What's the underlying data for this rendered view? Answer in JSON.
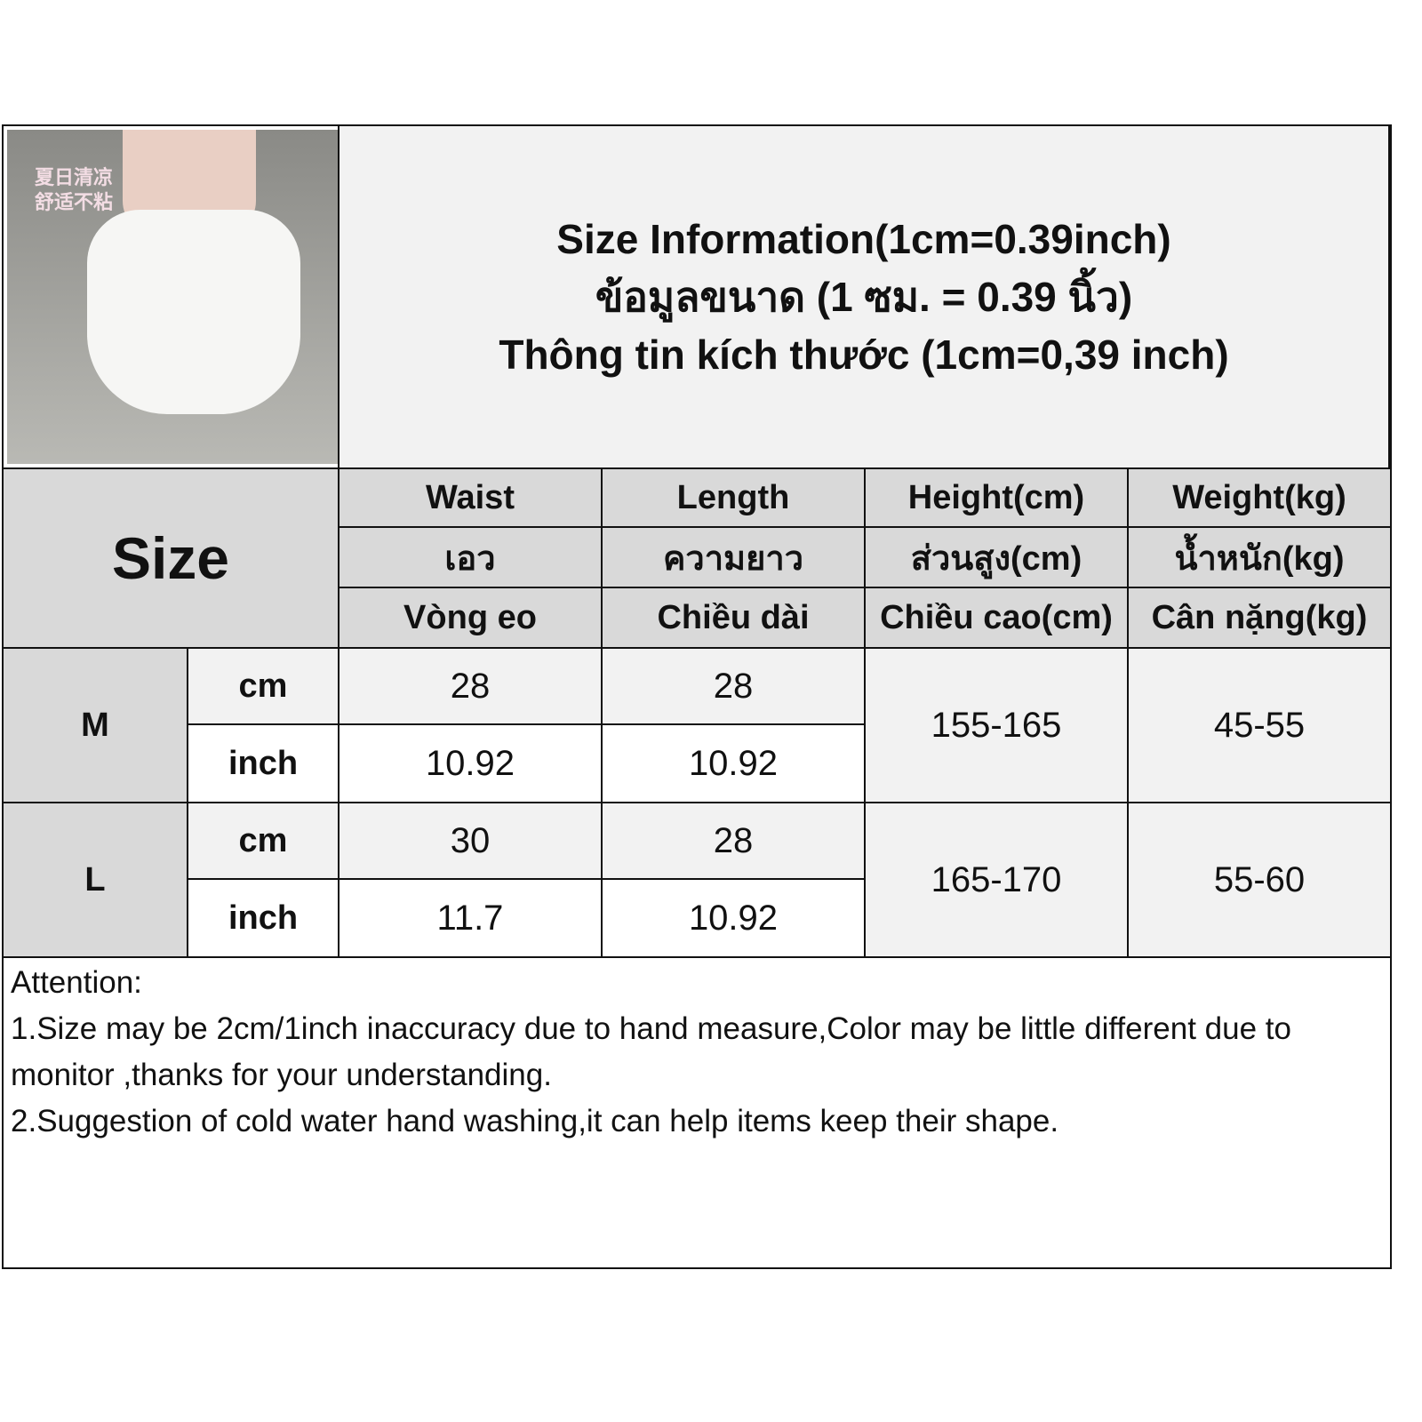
{
  "title_lines": [
    "Size Information(1cm=0.39inch)",
    "ข้อมูลขนาด (1 ซม. = 0.39 นิ้ว)",
    "Thông tin kích thước (1cm=0,39 inch)"
  ],
  "photo_overlay_text": "夏日清凉 舒适不粘",
  "size_label": "Size",
  "columns": [
    {
      "en": "Waist",
      "th": "เอว",
      "vi": "Vòng eo"
    },
    {
      "en": "Length",
      "th": "ความยาว",
      "vi": "Chiều dài"
    },
    {
      "en": "Height(cm)",
      "th": "ส่วนสูง(cm)",
      "vi": "Chiều cao(cm)"
    },
    {
      "en": "Weight(kg)",
      "th": "น้ำหนัก(kg)",
      "vi": "Cân nặng(kg)"
    }
  ],
  "rows": [
    {
      "size": "M",
      "cm_label": "cm",
      "inch_label": "inch",
      "waist_cm": "28",
      "waist_inch": "10.92",
      "length_cm": "28",
      "length_inch": "10.92",
      "height": "155-165",
      "weight": "45-55"
    },
    {
      "size": "L",
      "cm_label": "cm",
      "inch_label": "inch",
      "waist_cm": "30",
      "waist_inch": "11.7",
      "length_cm": "28",
      "length_inch": "10.92",
      "height": "165-170",
      "weight": "55-60"
    }
  ],
  "attention": {
    "heading": "Attention:",
    "line1": "1.Size may be 2cm/1inch inaccuracy due to hand measure,Color may be little different due to monitor ,thanks for your understanding.",
    "line2": "2.Suggestion of cold water hand washing,it can help items keep their shape."
  },
  "colors": {
    "header_gray": "#d9d9d9",
    "cm_row": "#f2f2f2",
    "inch_row": "#ffffff",
    "border": "#111111"
  }
}
